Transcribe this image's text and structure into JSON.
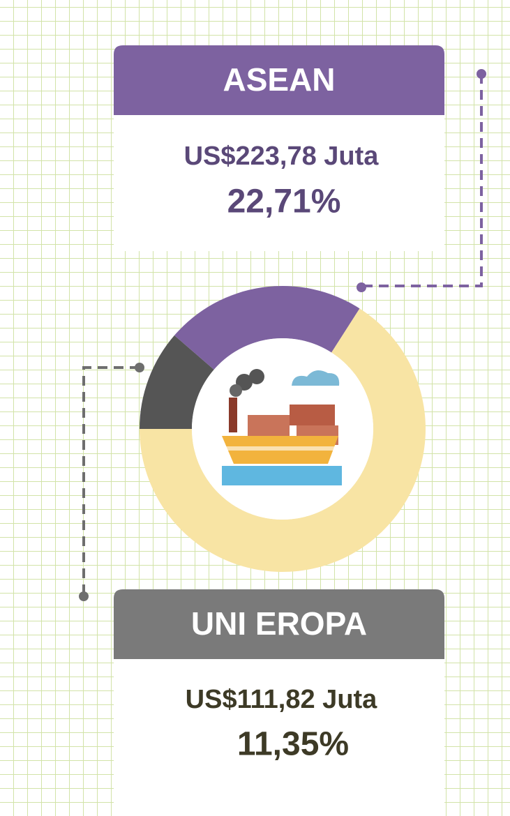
{
  "chart_data": {
    "type": "donut",
    "categories": [
      "ASEAN",
      "UNI EROPA",
      null
    ],
    "values": [
      22.71,
      11.35,
      65.94
    ],
    "value_labels": [
      "22,71%",
      "11,35%",
      null
    ],
    "amount_labels": [
      "US$223,78 Juta",
      "US$111,82 Juta",
      null
    ],
    "colors": [
      "#7d62a0",
      "#555555",
      "#f8e4a4"
    ]
  }
}
